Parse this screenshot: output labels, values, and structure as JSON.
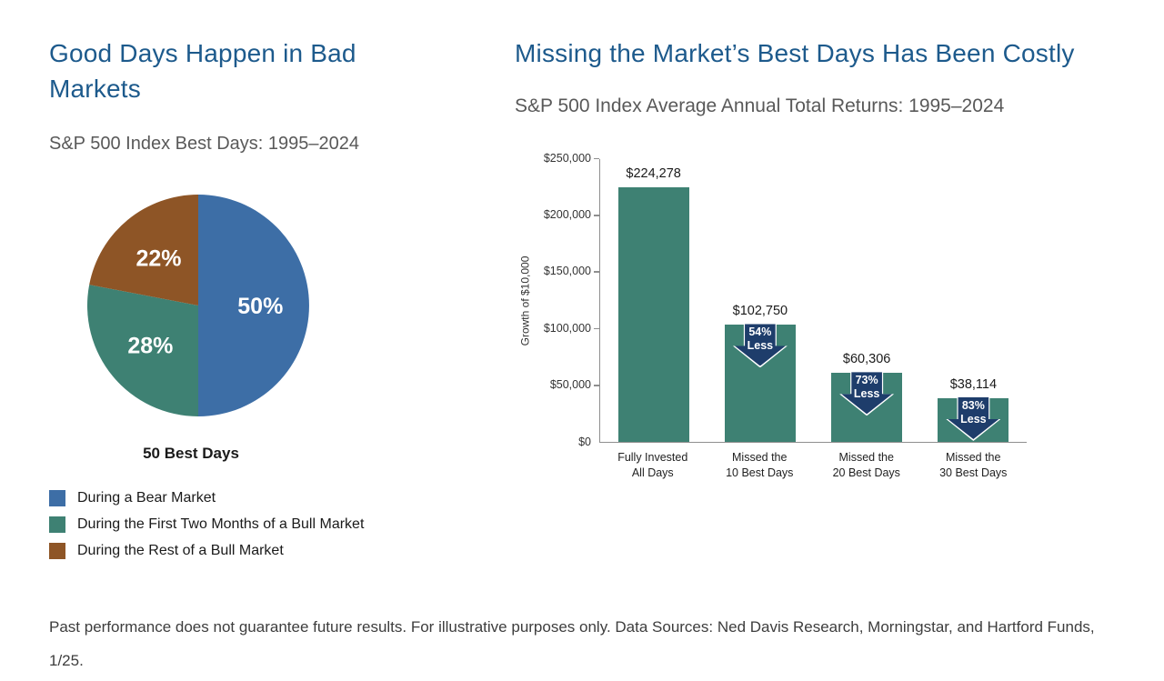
{
  "left": {
    "title": "Good Days Happen in Bad Markets",
    "subtitle": "S&P 500 Index Best Days: 1995–2024",
    "pie_caption": "50 Best Days",
    "legend": [
      {
        "label": "During a Bear Market",
        "color": "#3d6ea6"
      },
      {
        "label": "During the First Two Months of a Bull Market",
        "color": "#3e8173"
      },
      {
        "label": "During the Rest of a Bull Market",
        "color": "#8e5526"
      }
    ]
  },
  "right": {
    "title": "Missing the Market’s Best Days Has Been Costly",
    "subtitle": "S&P 500 Index Average Annual Total Returns: 1995–2024"
  },
  "footnote": "Past performance does not guarantee future results. For illustrative purposes only. Data Sources: Ned Davis Research, Morningstar, and Hartford Funds, 1/25.",
  "colors": {
    "heading": "#1d5a8c",
    "subtitle": "#595959",
    "axis": "#8f8f8f",
    "bar_teal": "#3e8173",
    "badge_navy": "#1e3d6b"
  },
  "chart_data": [
    {
      "type": "pie",
      "title": "S&P 500 Index Best Days: 1995–2024",
      "labels": [
        "During a Bear Market",
        "During the First Two Months of a Bull Market",
        "During the Rest of a Bull Market"
      ],
      "values": [
        50,
        28,
        22
      ],
      "slice_labels": [
        "50%",
        "28%",
        "22%"
      ],
      "colors": [
        "#3d6ea6",
        "#3e8173",
        "#8e5526"
      ],
      "caption": "50 Best Days",
      "start_angle_deg": 0,
      "direction": "clockwise",
      "unit": "percent"
    },
    {
      "type": "bar",
      "title": "S&P 500 Index Average Annual Total Returns: 1995–2024",
      "categories": [
        "Fully Invested\nAll Days",
        "Missed the\n10 Best Days",
        "Missed the\n20 Best Days",
        "Missed the\n30 Best Days"
      ],
      "values": [
        224278,
        102750,
        60306,
        38114
      ],
      "value_labels": [
        "$224,278",
        "$102,750",
        "$60,306",
        "$38,114"
      ],
      "badges": [
        null,
        "54%\nLess",
        "73%\nLess",
        "83%\nLess"
      ],
      "ylabel": "Growth of $10,000",
      "ylim": [
        0,
        250000
      ],
      "ytick_labels": [
        "$0",
        "$50,000",
        "$100,000",
        "$150,000",
        "$200,000",
        "$250,000"
      ],
      "bar_color": "#3e8173",
      "badge_color": "#1e3d6b",
      "grid": false,
      "legend_position": "none"
    }
  ]
}
